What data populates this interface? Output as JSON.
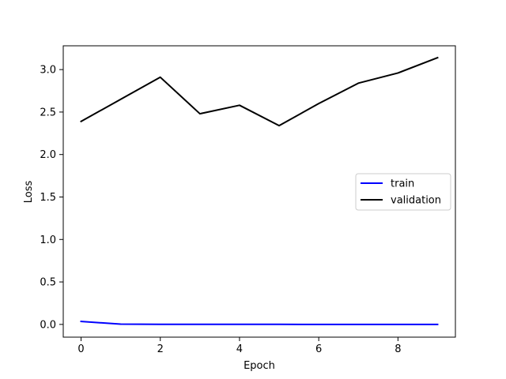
{
  "chart_data": {
    "type": "line",
    "title": "",
    "xlabel": "Epoch",
    "ylabel": "Loss",
    "xlim": [
      -0.45,
      9.45
    ],
    "ylim": [
      -0.15,
      3.28
    ],
    "x": [
      0,
      1,
      2,
      3,
      4,
      5,
      6,
      7,
      8,
      9
    ],
    "xticks": [
      0,
      2,
      4,
      6,
      8
    ],
    "yticks": [
      0.0,
      0.5,
      1.0,
      1.5,
      2.0,
      2.5,
      3.0
    ],
    "xtick_labels": [
      "0",
      "2",
      "4",
      "6",
      "8"
    ],
    "ytick_labels": [
      "0.0",
      "0.5",
      "1.0",
      "1.5",
      "2.0",
      "2.5",
      "3.0"
    ],
    "grid": false,
    "legend_position": "center-right",
    "series": [
      {
        "name": "train",
        "color": "#0000ff",
        "values": [
          0.035,
          0.003,
          0.001,
          0.001,
          0.0005,
          0.0005,
          0.0004,
          0.0003,
          0.0003,
          0.0003
        ]
      },
      {
        "name": "validation",
        "color": "#000000",
        "values": [
          2.39,
          2.65,
          2.91,
          2.48,
          2.58,
          2.34,
          2.6,
          2.84,
          2.96,
          3.14
        ]
      }
    ]
  }
}
